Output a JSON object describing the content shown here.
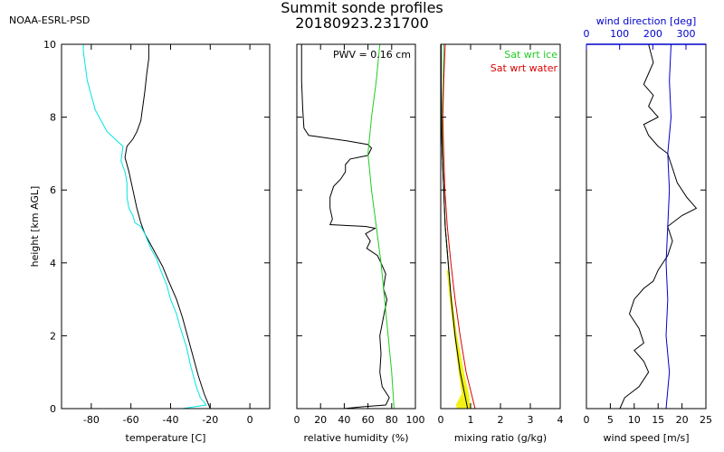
{
  "header": {
    "agency": "NOAA-ESRL-PSD",
    "title_line1": "Summit sonde profiles",
    "title_line2": "20180923.231700"
  },
  "chart_data": [
    {
      "type": "line",
      "id": "temperature",
      "xlabel": "temperature [C]",
      "ylabel": "height [km AGL]",
      "xlim": [
        -95,
        10
      ],
      "ylim": [
        0,
        10
      ],
      "xticks": [
        -80,
        -60,
        -40,
        -20,
        0
      ],
      "yticks": [
        0,
        2,
        4,
        6,
        8,
        10
      ],
      "series": [
        {
          "name": "temperature",
          "color": "#000000",
          "points": [
            [
              -20,
              0.0
            ],
            [
              -23,
              0.4
            ],
            [
              -26,
              0.9
            ],
            [
              -29,
              1.5
            ],
            [
              -32,
              2.1
            ],
            [
              -34,
              2.5
            ],
            [
              -37,
              3.0
            ],
            [
              -41,
              3.5
            ],
            [
              -44,
              3.9
            ],
            [
              -47,
              4.2
            ],
            [
              -50,
              4.5
            ],
            [
              -53,
              4.8
            ],
            [
              -55,
              5.1
            ],
            [
              -57,
              5.5
            ],
            [
              -59,
              6.0
            ],
            [
              -61,
              6.5
            ],
            [
              -63,
              6.9
            ],
            [
              -62,
              7.2
            ],
            [
              -59,
              7.4
            ],
            [
              -57,
              7.6
            ],
            [
              -55,
              7.9
            ],
            [
              -54,
              8.3
            ],
            [
              -53,
              8.7
            ],
            [
              -52,
              9.2
            ],
            [
              -51,
              9.6
            ],
            [
              -51,
              10.0
            ]
          ]
        },
        {
          "name": "dewpoint",
          "color": "#00e5e5",
          "points": [
            [
              -34,
              0.0
            ],
            [
              -22,
              0.1
            ],
            [
              -25,
              0.3
            ],
            [
              -27,
              0.6
            ],
            [
              -30,
              1.2
            ],
            [
              -32,
              1.7
            ],
            [
              -35,
              2.2
            ],
            [
              -37,
              2.6
            ],
            [
              -40,
              3.0
            ],
            [
              -42,
              3.4
            ],
            [
              -45,
              3.8
            ],
            [
              -47,
              4.1
            ],
            [
              -50,
              4.4
            ],
            [
              -53,
              4.8
            ],
            [
              -55,
              5.0
            ],
            [
              -58,
              5.1
            ],
            [
              -59,
              5.3
            ],
            [
              -61,
              5.5
            ],
            [
              -62,
              5.8
            ],
            [
              -62,
              6.2
            ],
            [
              -63,
              6.5
            ],
            [
              -65,
              6.8
            ],
            [
              -64,
              7.2
            ],
            [
              -68,
              7.4
            ],
            [
              -72,
              7.6
            ],
            [
              -75,
              7.9
            ],
            [
              -78,
              8.2
            ],
            [
              -80,
              8.6
            ],
            [
              -82,
              9.0
            ],
            [
              -83,
              9.4
            ],
            [
              -84,
              9.8
            ],
            [
              -84,
              10.0
            ]
          ]
        }
      ]
    },
    {
      "type": "line",
      "id": "humidity",
      "xlabel": "relative humidity (%)",
      "annotation": "PWV = 0.16 cm",
      "xlim": [
        0,
        100
      ],
      "ylim": [
        0,
        10
      ],
      "xticks": [
        0,
        20,
        40,
        60,
        80,
        100
      ],
      "series": [
        {
          "name": "relative humidity",
          "color": "#000000",
          "points": [
            [
              40,
              0.0
            ],
            [
              55,
              0.05
            ],
            [
              75,
              0.1
            ],
            [
              78,
              0.3
            ],
            [
              72,
              0.6
            ],
            [
              70,
              1.0
            ],
            [
              71,
              1.5
            ],
            [
              70,
              2.0
            ],
            [
              73,
              2.5
            ],
            [
              76,
              3.0
            ],
            [
              73,
              3.3
            ],
            [
              75,
              3.7
            ],
            [
              71,
              4.0
            ],
            [
              68,
              4.2
            ],
            [
              59,
              4.4
            ],
            [
              62,
              4.6
            ],
            [
              58,
              4.8
            ],
            [
              66,
              4.95
            ],
            [
              58,
              5.0
            ],
            [
              28,
              5.05
            ],
            [
              30,
              5.2
            ],
            [
              28,
              5.5
            ],
            [
              28,
              5.8
            ],
            [
              31,
              6.1
            ],
            [
              37,
              6.3
            ],
            [
              41,
              6.5
            ],
            [
              41,
              6.7
            ],
            [
              45,
              6.85
            ],
            [
              60,
              6.95
            ],
            [
              63,
              7.15
            ],
            [
              60,
              7.25
            ],
            [
              42,
              7.35
            ],
            [
              10,
              7.5
            ],
            [
              6,
              7.7
            ],
            [
              5,
              8.2
            ],
            [
              4,
              9.0
            ],
            [
              4,
              10.0
            ]
          ]
        },
        {
          "name": "saturation",
          "color": "#22cc22",
          "points": [
            [
              82,
              0.0
            ],
            [
              80,
              1.0
            ],
            [
              77,
              2.0
            ],
            [
              74,
              3.0
            ],
            [
              71,
              4.0
            ],
            [
              67,
              5.0
            ],
            [
              63,
              6.0
            ],
            [
              60,
              7.0
            ],
            [
              63,
              8.0
            ],
            [
              67,
              9.0
            ],
            [
              70,
              10.0
            ]
          ]
        }
      ]
    },
    {
      "type": "line",
      "id": "mixing",
      "xlabel": "mixing ratio (g/kg)",
      "xlim": [
        0,
        4
      ],
      "ylim": [
        0,
        10
      ],
      "xticks": [
        0,
        1,
        2,
        3,
        4
      ],
      "legend": [
        "Sat wrt ice",
        "Sat wrt water"
      ],
      "series": [
        {
          "name": "mixing ratio",
          "color": "#000000",
          "points": [
            [
              0.9,
              0.0
            ],
            [
              0.8,
              0.4
            ],
            [
              0.65,
              1.0
            ],
            [
              0.48,
              2.0
            ],
            [
              0.35,
              3.0
            ],
            [
              0.25,
              4.0
            ],
            [
              0.15,
              5.0
            ],
            [
              0.1,
              6.0
            ],
            [
              0.05,
              7.0
            ],
            [
              0.02,
              8.0
            ],
            [
              0.01,
              10.0
            ]
          ]
        },
        {
          "name": "Sat wrt ice",
          "color": "#22cc22",
          "points": [
            [
              0.95,
              0.0
            ],
            [
              0.85,
              0.4
            ],
            [
              0.68,
              1.0
            ],
            [
              0.5,
              2.0
            ],
            [
              0.35,
              3.0
            ],
            [
              0.25,
              4.0
            ],
            [
              0.15,
              5.0
            ],
            [
              0.1,
              6.0
            ],
            [
              0.06,
              7.0
            ],
            [
              0.05,
              8.0
            ],
            [
              0.08,
              9.0
            ],
            [
              0.1,
              10.0
            ]
          ]
        },
        {
          "name": "Sat wrt water",
          "color": "#dd0000",
          "points": [
            [
              1.15,
              0.0
            ],
            [
              1.0,
              0.5
            ],
            [
              0.85,
              1.0
            ],
            [
              0.65,
              2.0
            ],
            [
              0.48,
              3.0
            ],
            [
              0.34,
              4.0
            ],
            [
              0.22,
              5.0
            ],
            [
              0.14,
              6.0
            ],
            [
              0.1,
              7.0
            ],
            [
              0.07,
              8.0
            ],
            [
              0.1,
              9.0
            ],
            [
              0.15,
              10.0
            ]
          ]
        }
      ]
    },
    {
      "type": "line",
      "id": "wind",
      "xlabel": "wind speed [m/s]",
      "top_label": "wind direction [deg]",
      "xlim": [
        0,
        25
      ],
      "top_xlim": [
        0,
        360
      ],
      "ylim": [
        0,
        10
      ],
      "xticks": [
        0,
        5,
        10,
        15,
        20,
        25
      ],
      "top_xticks": [
        0,
        100,
        200,
        300
      ],
      "top_color": "#0000cc",
      "series": [
        {
          "name": "wind speed",
          "color": "#000000",
          "points": [
            [
              7,
              0.0
            ],
            [
              8,
              0.3
            ],
            [
              11,
              0.6
            ],
            [
              13,
              1.0
            ],
            [
              12,
              1.3
            ],
            [
              10,
              1.6
            ],
            [
              12,
              1.8
            ],
            [
              11,
              2.2
            ],
            [
              9,
              2.6
            ],
            [
              10,
              3.0
            ],
            [
              12,
              3.3
            ],
            [
              14,
              3.5
            ],
            [
              15,
              3.8
            ],
            [
              17,
              4.2
            ],
            [
              18,
              4.6
            ],
            [
              17,
              5.0
            ],
            [
              20,
              5.3
            ],
            [
              23,
              5.5
            ],
            [
              21,
              5.8
            ],
            [
              19,
              6.2
            ],
            [
              18,
              6.6
            ],
            [
              17,
              7.0
            ],
            [
              15,
              7.2
            ],
            [
              13,
              7.5
            ],
            [
              12,
              7.8
            ],
            [
              15,
              8.0
            ],
            [
              13,
              8.3
            ],
            [
              14,
              8.6
            ],
            [
              12,
              8.9
            ],
            [
              13,
              9.2
            ],
            [
              14,
              9.5
            ],
            [
              13,
              10.0
            ]
          ]
        },
        {
          "name": "wind direction",
          "color": "#0000cc",
          "points": [
            [
              240,
              0.0
            ],
            [
              250,
              1.0
            ],
            [
              240,
              2.0
            ],
            [
              245,
              3.0
            ],
            [
              240,
              4.0
            ],
            [
              245,
              5.0
            ],
            [
              250,
              6.0
            ],
            [
              245,
              7.0
            ],
            [
              255,
              8.0
            ],
            [
              250,
              9.0
            ],
            [
              255,
              10.0
            ]
          ]
        }
      ]
    }
  ]
}
